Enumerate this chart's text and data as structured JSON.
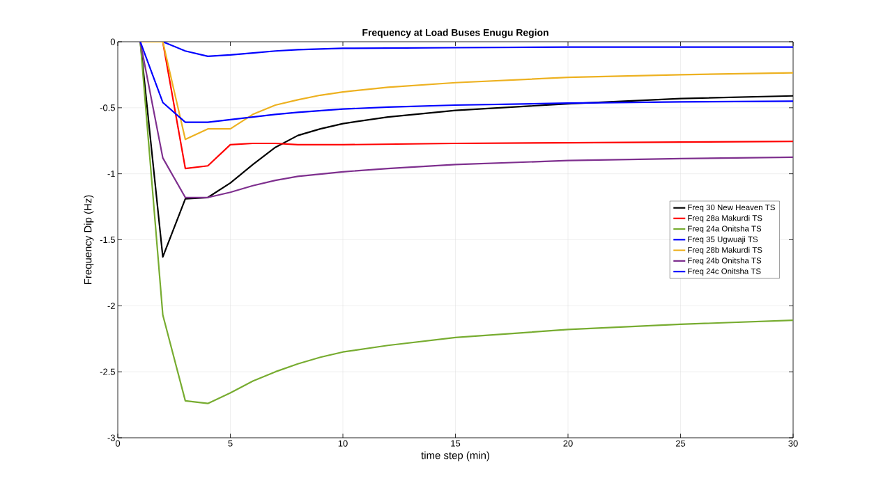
{
  "chart_data": {
    "type": "line",
    "title": "Frequency at Load Buses Enugu Region",
    "xlabel": "time step (min)",
    "ylabel": "Frequency Dip (Hz)",
    "xlim": [
      0,
      30
    ],
    "ylim": [
      -3,
      0
    ],
    "xticks": [
      0,
      5,
      10,
      15,
      20,
      25,
      30
    ],
    "yticks": [
      -3,
      -2.5,
      -2,
      -1.5,
      -1,
      -0.5,
      0
    ],
    "grid": true,
    "legend": "right",
    "series": [
      {
        "name": "Freq 30 New Heaven TS",
        "color": "#000000",
        "x": [
          1,
          2,
          3,
          4,
          5,
          6,
          7,
          8,
          9,
          10,
          12,
          15,
          20,
          25,
          30
        ],
        "values": [
          0,
          -1.63,
          -1.19,
          -1.18,
          -1.07,
          -0.93,
          -0.8,
          -0.71,
          -0.66,
          -0.62,
          -0.57,
          -0.52,
          -0.47,
          -0.43,
          -0.41
        ]
      },
      {
        "name": "Freq 28a Makurdi TS",
        "color": "#ff0000",
        "x": [
          1,
          2,
          3,
          4,
          5,
          6,
          7,
          8,
          10,
          15,
          20,
          30
        ],
        "values": [
          0,
          0,
          -0.96,
          -0.94,
          -0.78,
          -0.77,
          -0.77,
          -0.78,
          -0.78,
          -0.77,
          -0.765,
          -0.755
        ]
      },
      {
        "name": "Freq 24a Onitsha TS",
        "color": "#77ac30",
        "x": [
          1,
          2,
          3,
          4,
          5,
          6,
          7,
          8,
          9,
          10,
          12,
          15,
          20,
          25,
          30
        ],
        "values": [
          0,
          -2.07,
          -2.72,
          -2.74,
          -2.66,
          -2.57,
          -2.5,
          -2.44,
          -2.39,
          -2.35,
          -2.3,
          -2.24,
          -2.18,
          -2.14,
          -2.11
        ]
      },
      {
        "name": "Freq 35 Ugwuaji TS",
        "color": "#0000ff",
        "x": [
          1,
          2,
          3,
          4,
          5,
          6,
          7,
          8,
          10,
          15,
          20,
          30
        ],
        "values": [
          0,
          0,
          -0.07,
          -0.11,
          -0.1,
          -0.085,
          -0.07,
          -0.06,
          -0.05,
          -0.045,
          -0.04,
          -0.04
        ]
      },
      {
        "name": "Freq 28b Makurdi TS",
        "color": "#edb120",
        "x": [
          1,
          2,
          3,
          4,
          5,
          6,
          7,
          8,
          9,
          10,
          12,
          15,
          20,
          25,
          30
        ],
        "values": [
          0,
          0,
          -0.74,
          -0.66,
          -0.66,
          -0.55,
          -0.48,
          -0.44,
          -0.405,
          -0.38,
          -0.345,
          -0.31,
          -0.27,
          -0.25,
          -0.235
        ]
      },
      {
        "name": "Freq 24b Onitsha TS",
        "color": "#7e2f8e",
        "x": [
          1,
          2,
          3,
          4,
          5,
          6,
          7,
          8,
          10,
          12,
          15,
          20,
          25,
          30
        ],
        "values": [
          0,
          -0.88,
          -1.18,
          -1.18,
          -1.14,
          -1.09,
          -1.05,
          -1.02,
          -0.985,
          -0.96,
          -0.93,
          -0.9,
          -0.885,
          -0.875
        ]
      },
      {
        "name": "Freq 24c Onitsha TS",
        "color": "#0000ff",
        "x": [
          1,
          2,
          3,
          4,
          5,
          6,
          7,
          8,
          10,
          12,
          15,
          20,
          25,
          30
        ],
        "values": [
          0,
          -0.46,
          -0.61,
          -0.61,
          -0.59,
          -0.57,
          -0.55,
          -0.535,
          -0.51,
          -0.495,
          -0.48,
          -0.465,
          -0.455,
          -0.45
        ]
      }
    ]
  }
}
